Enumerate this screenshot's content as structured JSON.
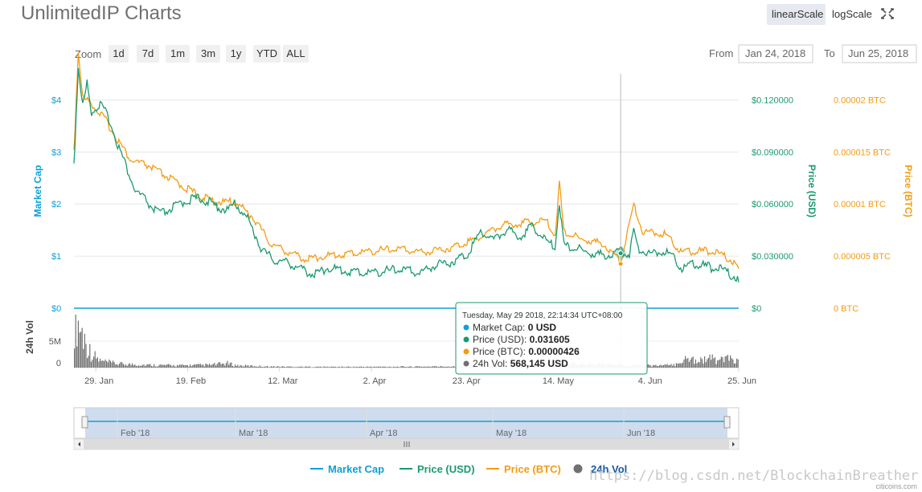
{
  "title": "UnlimitedIP Charts",
  "scale_buttons": {
    "linear": "linearScale",
    "log": "logScale",
    "fullscreen_icon": "expand-icon"
  },
  "zoom": {
    "label": "Zoom",
    "buttons": [
      "1d",
      "7d",
      "1m",
      "3m",
      "1y",
      "YTD",
      "ALL"
    ]
  },
  "range": {
    "from_label": "From",
    "from_value": "Jan 24, 2018",
    "to_label": "To",
    "to_value": "Jun 25, 2018"
  },
  "colors": {
    "market_cap": "#0fa0d8",
    "price_usd": "#1a9a6e",
    "price_btc": "#f39c12",
    "volume": "#707070"
  },
  "chart_data": {
    "type": "line",
    "x_range": [
      "2018-01-24",
      "2018-06-25"
    ],
    "x_ticks": [
      "29. Jan",
      "19. Feb",
      "12. Mar",
      "2. Apr",
      "23. Apr",
      "14. May",
      "4. Jun",
      "25. Jun"
    ],
    "y_axes": {
      "market_cap": {
        "title": "Market Cap",
        "ticks": [
          "$0",
          "$1",
          "$2",
          "$3",
          "$4"
        ],
        "range": [
          0,
          4.5
        ]
      },
      "price_usd": {
        "title": "Price (USD)",
        "ticks": [
          "$0",
          "$0.030000",
          "$0.060000",
          "$0.090000",
          "$0.120000"
        ],
        "range": [
          0,
          0.135
        ]
      },
      "price_btc": {
        "title": "Price (BTC)",
        "ticks": [
          "0 BTC",
          "0.000005 BTC",
          "0.00001 BTC",
          "0.000015 BTC",
          "0.00002 BTC"
        ],
        "range": [
          0,
          2.25e-05
        ]
      },
      "volume": {
        "title": "24h Vol",
        "ticks": [
          "0",
          "5M"
        ],
        "range": [
          0,
          10000000
        ]
      }
    },
    "series": [
      {
        "name": "Market Cap",
        "points": [
          [
            "2018-01-24",
            0
          ],
          [
            "2018-06-25",
            0
          ]
        ]
      },
      {
        "name": "Price (USD)",
        "points": [
          [
            "2018-01-24",
            0.082
          ],
          [
            "2018-01-25",
            0.138
          ],
          [
            "2018-01-26",
            0.115
          ],
          [
            "2018-01-27",
            0.128
          ],
          [
            "2018-01-28",
            0.112
          ],
          [
            "2018-01-30",
            0.116
          ],
          [
            "2018-02-01",
            0.108
          ],
          [
            "2018-02-03",
            0.093
          ],
          [
            "2018-02-05",
            0.08
          ],
          [
            "2018-02-07",
            0.066
          ],
          [
            "2018-02-09",
            0.062
          ],
          [
            "2018-02-11",
            0.056
          ],
          [
            "2018-02-13",
            0.053
          ],
          [
            "2018-02-16",
            0.057
          ],
          [
            "2018-02-19",
            0.061
          ],
          [
            "2018-02-22",
            0.062
          ],
          [
            "2018-02-25",
            0.058
          ],
          [
            "2018-02-28",
            0.055
          ],
          [
            "2018-03-02",
            0.059
          ],
          [
            "2018-03-05",
            0.049
          ],
          [
            "2018-03-08",
            0.032
          ],
          [
            "2018-03-11",
            0.026
          ],
          [
            "2018-03-14",
            0.025
          ],
          [
            "2018-03-17",
            0.021
          ],
          [
            "2018-03-20",
            0.018
          ],
          [
            "2018-03-23",
            0.022
          ],
          [
            "2018-03-27",
            0.02
          ],
          [
            "2018-04-01",
            0.019
          ],
          [
            "2018-04-05",
            0.02
          ],
          [
            "2018-04-09",
            0.021
          ],
          [
            "2018-04-13",
            0.019
          ],
          [
            "2018-04-17",
            0.024
          ],
          [
            "2018-04-20",
            0.025
          ],
          [
            "2018-04-24",
            0.03
          ],
          [
            "2018-04-27",
            0.043
          ],
          [
            "2018-04-30",
            0.038
          ],
          [
            "2018-05-03",
            0.044
          ],
          [
            "2018-05-06",
            0.04
          ],
          [
            "2018-05-09",
            0.046
          ],
          [
            "2018-05-12",
            0.037
          ],
          [
            "2018-05-14",
            0.034
          ],
          [
            "2018-05-15",
            0.06
          ],
          [
            "2018-05-16",
            0.035
          ],
          [
            "2018-05-19",
            0.033
          ],
          [
            "2018-05-22",
            0.03
          ],
          [
            "2018-05-26",
            0.029
          ],
          [
            "2018-05-29",
            0.0316
          ],
          [
            "2018-05-31",
            0.03
          ],
          [
            "2018-06-01",
            0.044
          ],
          [
            "2018-06-02",
            0.033
          ],
          [
            "2018-06-05",
            0.03
          ],
          [
            "2018-06-08",
            0.032
          ],
          [
            "2018-06-10",
            0.028
          ],
          [
            "2018-06-12",
            0.022
          ],
          [
            "2018-06-15",
            0.024
          ],
          [
            "2018-06-19",
            0.022
          ],
          [
            "2018-06-22",
            0.02
          ],
          [
            "2018-06-25",
            0.015
          ]
        ]
      },
      {
        "name": "Price (BTC)",
        "points": [
          [
            "2018-01-24",
            1.5e-05
          ],
          [
            "2018-01-25",
            2.45e-05
          ],
          [
            "2018-01-26",
            2e-05
          ],
          [
            "2018-01-28",
            1.95e-05
          ],
          [
            "2018-01-31",
            1.8e-05
          ],
          [
            "2018-02-03",
            1.6e-05
          ],
          [
            "2018-02-06",
            1.4e-05
          ],
          [
            "2018-02-10",
            1.35e-05
          ],
          [
            "2018-02-14",
            1.25e-05
          ],
          [
            "2018-02-18",
            1.15e-05
          ],
          [
            "2018-02-22",
            1.05e-05
          ],
          [
            "2018-02-26",
            1e-05
          ],
          [
            "2018-03-02",
            1e-05
          ],
          [
            "2018-03-06",
            8.5e-06
          ],
          [
            "2018-03-10",
            6e-06
          ],
          [
            "2018-03-14",
            5.2e-06
          ],
          [
            "2018-03-18",
            4.5e-06
          ],
          [
            "2018-03-22",
            4.8e-06
          ],
          [
            "2018-03-27",
            5e-06
          ],
          [
            "2018-04-02",
            5.3e-06
          ],
          [
            "2018-04-08",
            5.5e-06
          ],
          [
            "2018-04-14",
            5.2e-06
          ],
          [
            "2018-04-20",
            5.6e-06
          ],
          [
            "2018-04-26",
            6.5e-06
          ],
          [
            "2018-05-02",
            7.8e-06
          ],
          [
            "2018-05-07",
            8e-06
          ],
          [
            "2018-05-12",
            8.2e-06
          ],
          [
            "2018-05-14",
            6.8e-06
          ],
          [
            "2018-05-15",
            1.18e-05
          ],
          [
            "2018-05-16",
            7.2e-06
          ],
          [
            "2018-05-20",
            6.4e-06
          ],
          [
            "2018-05-25",
            6e-06
          ],
          [
            "2018-05-29",
            4.26e-06
          ],
          [
            "2018-06-01",
            9.8e-06
          ],
          [
            "2018-06-03",
            7.2e-06
          ],
          [
            "2018-06-08",
            7e-06
          ],
          [
            "2018-06-12",
            5.2e-06
          ],
          [
            "2018-06-18",
            5.3e-06
          ],
          [
            "2018-06-22",
            4.8e-06
          ],
          [
            "2018-06-25",
            3.8e-06
          ]
        ]
      },
      {
        "name": "24h Vol",
        "points": [
          [
            "2018-01-24",
            9000000
          ],
          [
            "2018-01-25",
            8200000
          ],
          [
            "2018-01-26",
            6000000
          ],
          [
            "2018-01-27",
            4000000
          ],
          [
            "2018-01-28",
            2500000
          ],
          [
            "2018-01-30",
            1200000
          ],
          [
            "2018-02-03",
            700000
          ],
          [
            "2018-02-10",
            500000
          ],
          [
            "2018-02-17",
            400000
          ],
          [
            "2018-02-24",
            500000
          ],
          [
            "2018-02-28",
            800000
          ],
          [
            "2018-03-02",
            400000
          ],
          [
            "2018-03-10",
            200000
          ],
          [
            "2018-03-20",
            150000
          ],
          [
            "2018-04-01",
            150000
          ],
          [
            "2018-04-15",
            200000
          ],
          [
            "2018-04-25",
            250000
          ],
          [
            "2018-05-05",
            250000
          ],
          [
            "2018-05-15",
            900000
          ],
          [
            "2018-05-20",
            600000
          ],
          [
            "2018-05-29",
            568145
          ],
          [
            "2018-06-05",
            400000
          ],
          [
            "2018-06-10",
            450000
          ],
          [
            "2018-06-12",
            1500000
          ],
          [
            "2018-06-18",
            1600000
          ],
          [
            "2018-06-25",
            1500000
          ]
        ]
      }
    ],
    "legend": [
      "Market Cap",
      "Price (USD)",
      "Price (BTC)",
      "24h Vol"
    ],
    "legend_position": "bottom",
    "tooltip": {
      "date": "Tuesday, May 29 2018, 22:14:34 UTC+08:00",
      "rows": [
        {
          "label": "Market Cap:",
          "value": "0 USD"
        },
        {
          "label": "Price (USD):",
          "value": "0.031605"
        },
        {
          "label": "Price (BTC):",
          "value": "0.00000426"
        },
        {
          "label": "24h Vol:",
          "value": "568,145 USD"
        }
      ]
    },
    "navigator_labels": [
      "Feb '18",
      "Mar '18",
      "Apr '18",
      "May '18",
      "Jun '18"
    ]
  },
  "watermark": "https://blog.csdn.net/BlockchainBreather",
  "credit": "citicoins.com"
}
